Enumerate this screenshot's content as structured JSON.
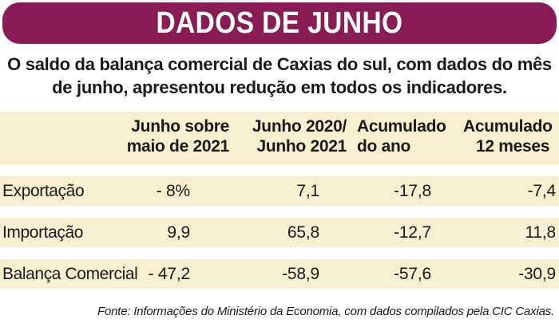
{
  "banner": {
    "title": "DADOS DE JUNHO"
  },
  "subtitle": "O saldo da balança comercial de Caxias do sul, com dados do mês de junho, apresentou redução em todos os indicadores.",
  "table": {
    "headers": [
      {
        "line1": "Junho sobre",
        "line2": "maio de 2021"
      },
      {
        "line1": "Junho 2020/",
        "line2": "Junho 2021"
      },
      {
        "line1": "Acumulado",
        "line2": "do ano"
      },
      {
        "line1": "Acumulado",
        "line2": "12 meses"
      }
    ],
    "rows": [
      {
        "label": "Exportação",
        "values": [
          "- 8%",
          "7,1",
          "-17,8",
          "-7,4"
        ]
      },
      {
        "label": "Importação",
        "values": [
          "9,9",
          "65,8",
          "-12,7",
          "11,8"
        ]
      },
      {
        "label": "Balança Comercial",
        "values": [
          "- 47,2",
          "-58,9",
          "-57,6",
          "-30,9"
        ]
      }
    ]
  },
  "source": "Fonte: Informações do Ministério da Economia, com dados compilados pela CIC Caxias.",
  "colors": {
    "banner": "#8a1c55",
    "band": "#f7efcf"
  }
}
